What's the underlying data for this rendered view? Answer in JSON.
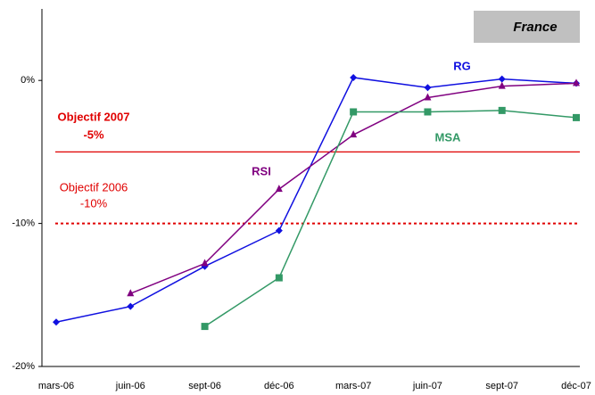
{
  "chart_data": {
    "type": "line",
    "title": "France",
    "categories": [
      "mars-06",
      "juin-06",
      "sept-06",
      "déc-06",
      "mars-07",
      "juin-07",
      "sept-07",
      "déc-07"
    ],
    "series": [
      {
        "name": "RG",
        "color": "#1010e0",
        "marker": "diamond",
        "values": [
          -16.9,
          -15.8,
          -13.0,
          -10.5,
          0.2,
          -0.5,
          0.1,
          -0.2
        ]
      },
      {
        "name": "RSI",
        "color": "#800080",
        "marker": "triangle",
        "values": [
          null,
          -14.9,
          -12.8,
          -7.6,
          -3.8,
          -1.2,
          -0.4,
          -0.2
        ]
      },
      {
        "name": "MSA",
        "color": "#339966",
        "marker": "square",
        "values": [
          null,
          null,
          -17.2,
          -13.8,
          -2.2,
          -2.2,
          -2.1,
          -2.6
        ]
      }
    ],
    "reference_lines": [
      {
        "label": "Objectif 2007",
        "value": -5,
        "value_label": "-5%",
        "color": "#e00000",
        "style": "solid",
        "bold": true
      },
      {
        "label": "Objectif 2006",
        "value": -10,
        "value_label": "-10%",
        "color": "#e00000",
        "style": "dotted",
        "bold": false
      }
    ],
    "ylim": [
      -20,
      5
    ],
    "yticks": [
      {
        "value": -20,
        "label": "-20%"
      },
      {
        "value": -10,
        "label": "-10%"
      },
      {
        "value": 0,
        "label": "0%"
      }
    ]
  }
}
